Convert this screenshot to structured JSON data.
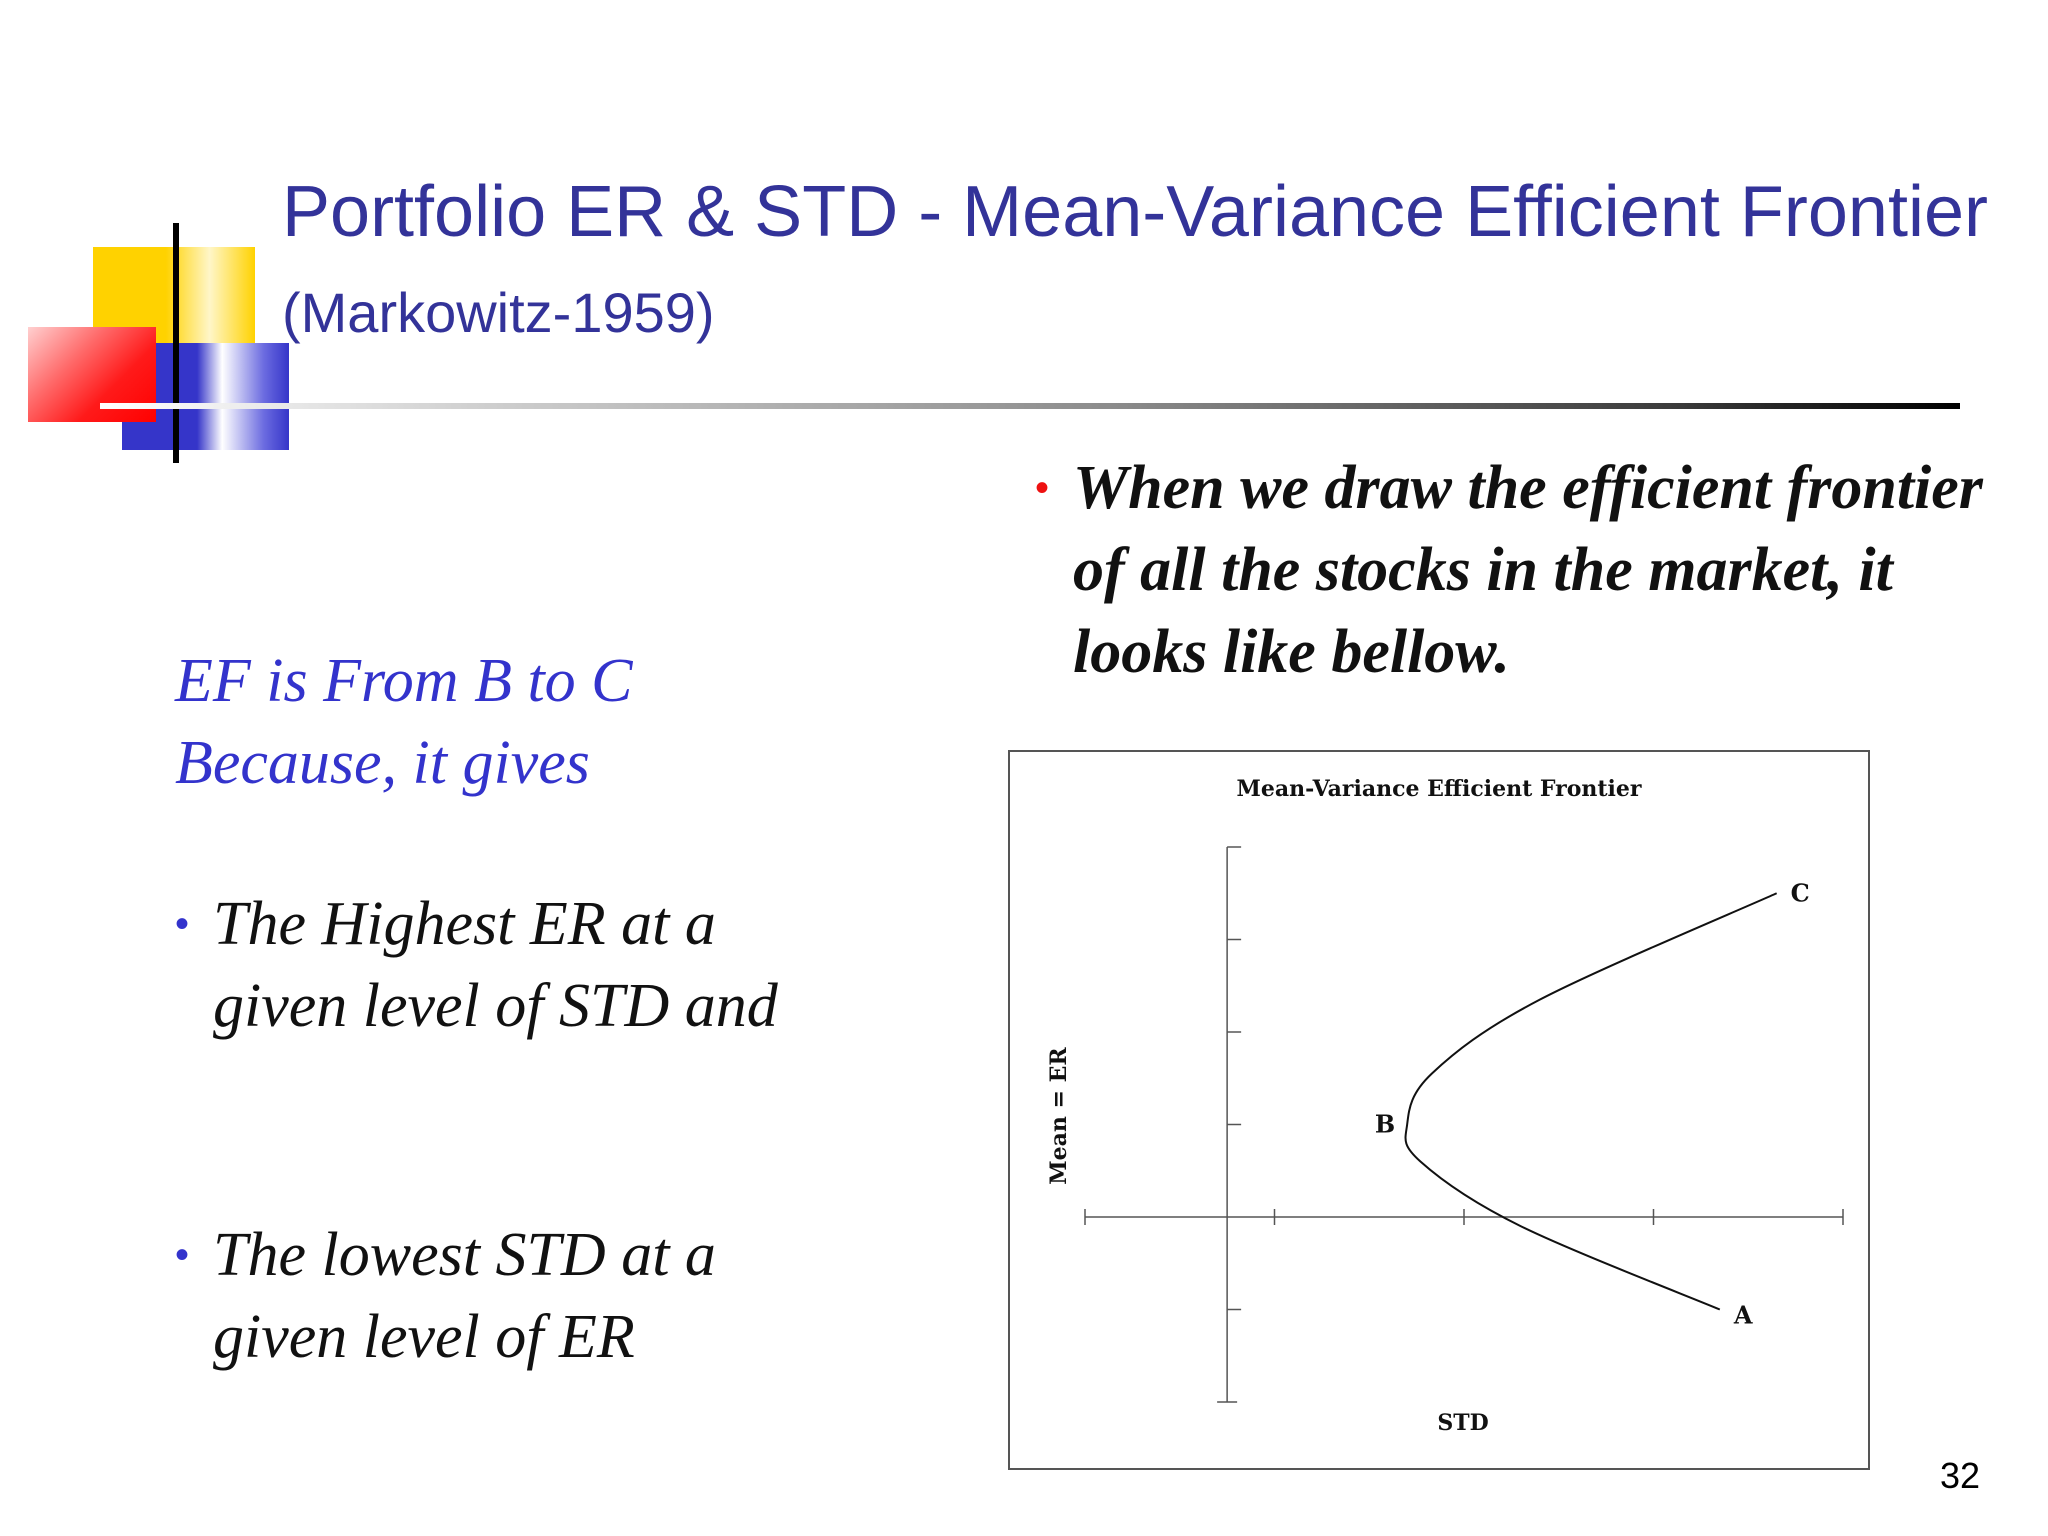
{
  "slide": {
    "title_main": "Portfolio ER & STD - Mean-Variance Efficient Frontier",
    "title_sub": "(Markowitz-1959)",
    "page_number": "32"
  },
  "left": {
    "ef_line1": "EF is From B to C",
    "ef_line2": "Because, it gives",
    "bullets": [
      "The Highest ER at a given level of STD and",
      "The lowest STD at a given level of ER"
    ]
  },
  "right": {
    "bullet": "When we draw the efficient frontier of all the stocks in the market, it looks like bellow."
  },
  "chart_data": {
    "type": "line",
    "title": "Mean-Variance Efficient Frontier",
    "xlabel": "STD",
    "ylabel": "Mean = ER",
    "points": [
      {
        "label": "A",
        "x": 2.6,
        "y": -1.0
      },
      {
        "label": "B",
        "x": 0.95,
        "y": 1.0
      },
      {
        "label": "C",
        "x": 2.9,
        "y": 3.5
      }
    ],
    "curve": [
      {
        "x": 2.6,
        "y": -1.0
      },
      {
        "x": 1.55,
        "y": -0.1
      },
      {
        "x": 1.02,
        "y": 0.6
      },
      {
        "x": 0.95,
        "y": 1.0
      },
      {
        "x": 1.08,
        "y": 1.55
      },
      {
        "x": 1.65,
        "y": 2.35
      },
      {
        "x": 2.9,
        "y": 3.5
      }
    ],
    "xlim": [
      -0.75,
      3.25
    ],
    "ylim": [
      -2.0,
      4.0
    ],
    "x_ticks": [
      0.25,
      1.25,
      2.25,
      3.25
    ],
    "y_ticks": [
      -1,
      1,
      2,
      3,
      4
    ],
    "grid": false,
    "legend": "none"
  }
}
